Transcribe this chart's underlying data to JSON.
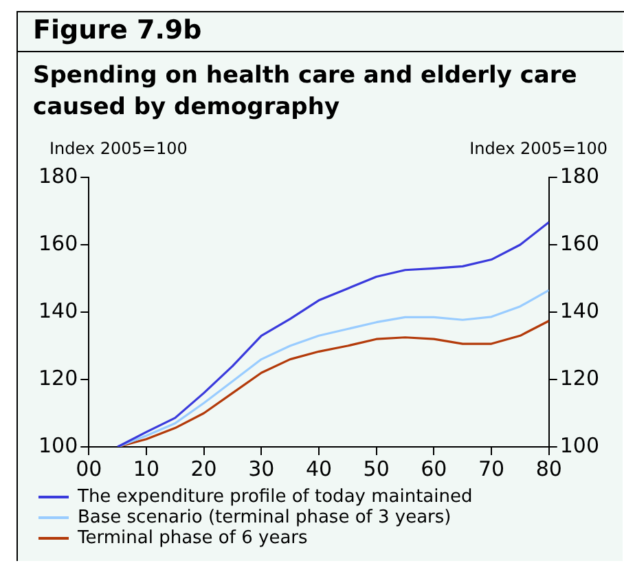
{
  "chart_data": {
    "type": "line",
    "title": "Spending on health care and elderly care caused by demography",
    "annotations": [
      "Figure 7.9b"
    ],
    "ylabel": "Index 2005=100",
    "y2label": "Index 2005=100",
    "x": [
      5,
      10,
      15,
      20,
      25,
      30,
      35,
      40,
      45,
      50,
      55,
      60,
      65,
      70,
      75,
      80
    ],
    "xlim": [
      0,
      80
    ],
    "xticks": [
      {
        "value": 0,
        "label": "00"
      },
      10,
      20,
      30,
      40,
      50,
      60,
      70,
      80
    ],
    "ylim": [
      100,
      180
    ],
    "yticks": [
      100,
      120,
      140,
      160,
      180
    ],
    "y2lim": [
      100,
      180
    ],
    "y2ticks": [
      100,
      120,
      140,
      160,
      180
    ],
    "series": [
      {
        "name": "The expenditure profile of today maintained",
        "color": "#3a3adc",
        "values": [
          100,
          104.4,
          108.6,
          116,
          124,
          133,
          138,
          143.5,
          147,
          150.5,
          152.5,
          153,
          153.6,
          155.6,
          160,
          166.7
        ]
      },
      {
        "name": "Base scenario (terminal phase of 3 years)",
        "color": "#99ccff",
        "values": [
          100,
          103.3,
          107,
          113,
          119.5,
          126,
          130,
          133,
          135,
          137,
          138.5,
          138.5,
          137.7,
          138.6,
          141.7,
          146.5
        ]
      },
      {
        "name": "Terminal phase of 6 years",
        "color": "#b33a0a",
        "values": [
          100,
          102.3,
          105.6,
          110,
          116,
          122,
          126,
          128.3,
          130,
          132,
          132.5,
          132,
          130.6,
          130.6,
          133,
          137.4
        ]
      }
    ],
    "grid": false,
    "legend": "bottom",
    "marker": "none",
    "line_style": "solid"
  }
}
